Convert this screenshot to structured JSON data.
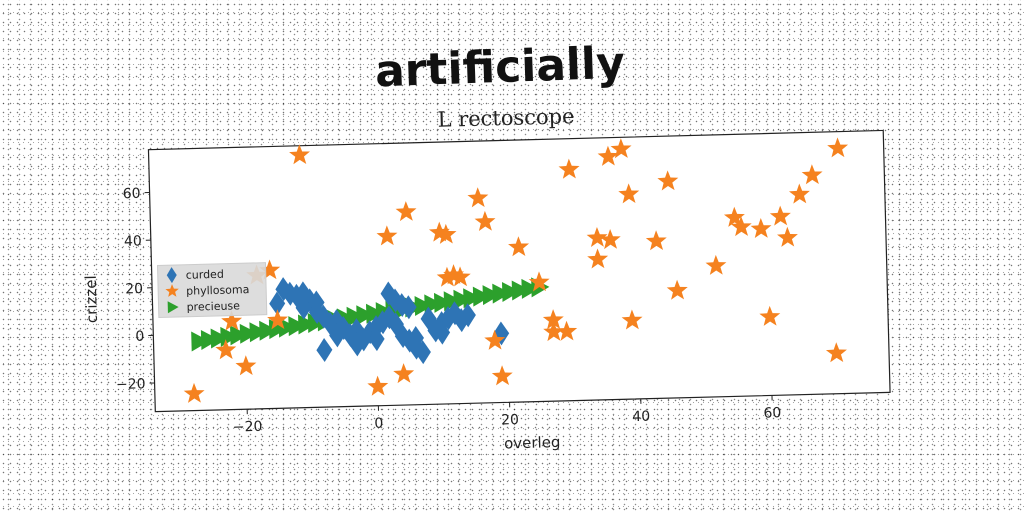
{
  "chart_data": {
    "type": "scatter",
    "title": "artificially",
    "subtitle": "L rectoscope",
    "xlabel": "overleg",
    "ylabel": "crizzel",
    "xlim": [
      -34,
      78
    ],
    "ylim": [
      -32,
      78
    ],
    "xticks": [
      -20,
      0,
      20,
      40,
      60
    ],
    "yticks": [
      -20,
      0,
      20,
      40,
      60
    ],
    "x_tick_labels": [
      "−20",
      "0",
      "20",
      "40",
      "60"
    ],
    "y_tick_labels": [
      "−20",
      "0",
      "20",
      "40",
      "60"
    ],
    "grid": false,
    "legend_position": "left",
    "colors": {
      "curded": "#2e74b5",
      "phyllosoma": "#f5821f",
      "precieuse": "#2ca02c"
    },
    "series": [
      {
        "name": "curded",
        "marker": "diamond",
        "points": [
          [
            -14,
            18
          ],
          [
            -13,
            16
          ],
          [
            -12,
            15
          ],
          [
            -11,
            16
          ],
          [
            -10,
            13
          ],
          [
            -9,
            12
          ],
          [
            -11,
            10
          ],
          [
            -9,
            8
          ],
          [
            -8,
            6
          ],
          [
            -7,
            3
          ],
          [
            -6,
            4
          ],
          [
            -5,
            1
          ],
          [
            -4,
            -2
          ],
          [
            -3,
            0
          ],
          [
            -2,
            -4
          ],
          [
            -1,
            -1
          ],
          [
            0,
            1
          ],
          [
            1,
            3
          ],
          [
            2,
            5
          ],
          [
            3,
            2
          ],
          [
            4,
            -3
          ],
          [
            5,
            -5
          ],
          [
            6,
            -8
          ],
          [
            7,
            -10
          ],
          [
            2,
            15
          ],
          [
            3,
            12
          ],
          [
            4,
            10
          ],
          [
            5,
            9
          ],
          [
            8,
            4
          ],
          [
            9,
            -1
          ],
          [
            10,
            2
          ],
          [
            11,
            4
          ],
          [
            12,
            6
          ],
          [
            13,
            3
          ],
          [
            14,
            5
          ],
          [
            -15,
            12
          ],
          [
            -6,
            -2
          ],
          [
            -3,
            -6
          ],
          [
            0,
            -4
          ],
          [
            6,
            -4
          ],
          [
            10,
            -2
          ],
          [
            19,
            -3
          ],
          [
            -8,
            -8
          ]
        ]
      },
      {
        "name": "phyllosoma",
        "marker": "star",
        "points": [
          [
            -28,
            -25
          ],
          [
            -23,
            -7
          ],
          [
            -22,
            5
          ],
          [
            -20,
            -14
          ],
          [
            -16,
            26
          ],
          [
            -15,
            5
          ],
          [
            -11,
            74
          ],
          [
            2,
            39
          ],
          [
            4,
            -19
          ],
          [
            5,
            49
          ],
          [
            0,
            -24
          ],
          [
            10,
            40
          ],
          [
            11,
            39
          ],
          [
            11,
            21
          ],
          [
            12,
            22
          ],
          [
            16,
            54
          ],
          [
            17,
            44
          ],
          [
            18,
            -6
          ],
          [
            19,
            -21
          ],
          [
            22,
            33
          ],
          [
            27,
            2
          ],
          [
            27,
            -3
          ],
          [
            29,
            -3
          ],
          [
            30,
            65
          ],
          [
            34,
            27
          ],
          [
            34,
            36
          ],
          [
            36,
            35
          ],
          [
            36,
            70
          ],
          [
            38,
            73
          ],
          [
            39,
            54
          ],
          [
            39,
            1
          ],
          [
            43,
            34
          ],
          [
            45,
            59
          ],
          [
            46,
            13
          ],
          [
            52,
            23
          ],
          [
            55,
            43
          ],
          [
            56,
            39
          ],
          [
            59,
            38
          ],
          [
            60,
            1
          ],
          [
            62,
            43
          ],
          [
            63,
            34
          ],
          [
            65,
            52
          ],
          [
            67,
            60
          ],
          [
            71,
            71
          ],
          [
            70,
            -15
          ],
          [
            13,
            21
          ],
          [
            25,
            18
          ],
          [
            -18,
            24
          ]
        ]
      },
      {
        "name": "precieuse",
        "marker": "triangle-right",
        "x_range": [
          -27,
          25
        ],
        "y_range": [
          -3,
          16
        ],
        "count": 36
      }
    ]
  }
}
